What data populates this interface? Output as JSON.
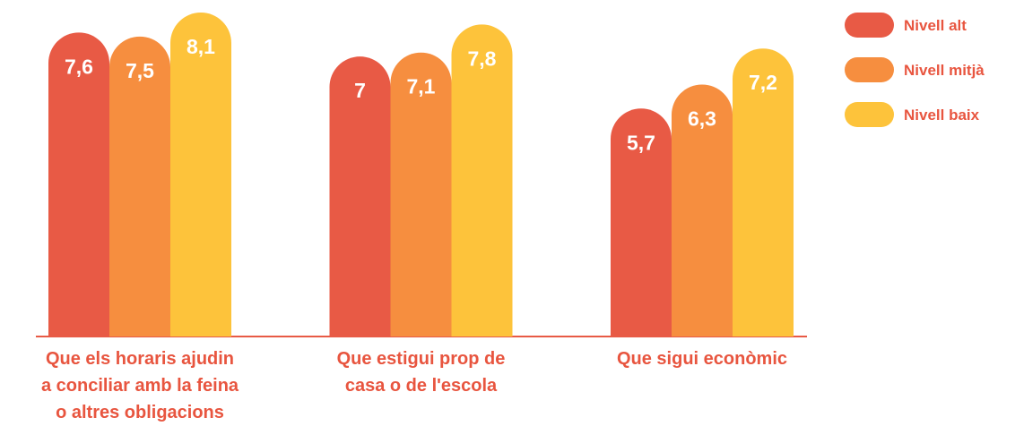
{
  "chart_data": {
    "type": "bar",
    "categories": [
      "Que els horaris ajudin\na conciliar amb la feina\no altres obligacions",
      "Que estigui prop de\ncasa o de l'escola",
      "Que sigui econòmic"
    ],
    "series": [
      {
        "name": "Nivell alt",
        "color": "#e85a45",
        "values": [
          7.6,
          7,
          5.7
        ],
        "value_labels": [
          "7,6",
          "7",
          "5,7"
        ]
      },
      {
        "name": "Nivell mitjà",
        "color": "#f68e3f",
        "values": [
          7.5,
          7.1,
          6.3
        ],
        "value_labels": [
          "7,5",
          "7,1",
          "6,3"
        ]
      },
      {
        "name": "Nivell baix",
        "color": "#fdc33b",
        "values": [
          8.1,
          7.8,
          7.2
        ],
        "value_labels": [
          "8,1",
          "7,8",
          "7,2"
        ]
      }
    ],
    "legend": "top-right"
  }
}
